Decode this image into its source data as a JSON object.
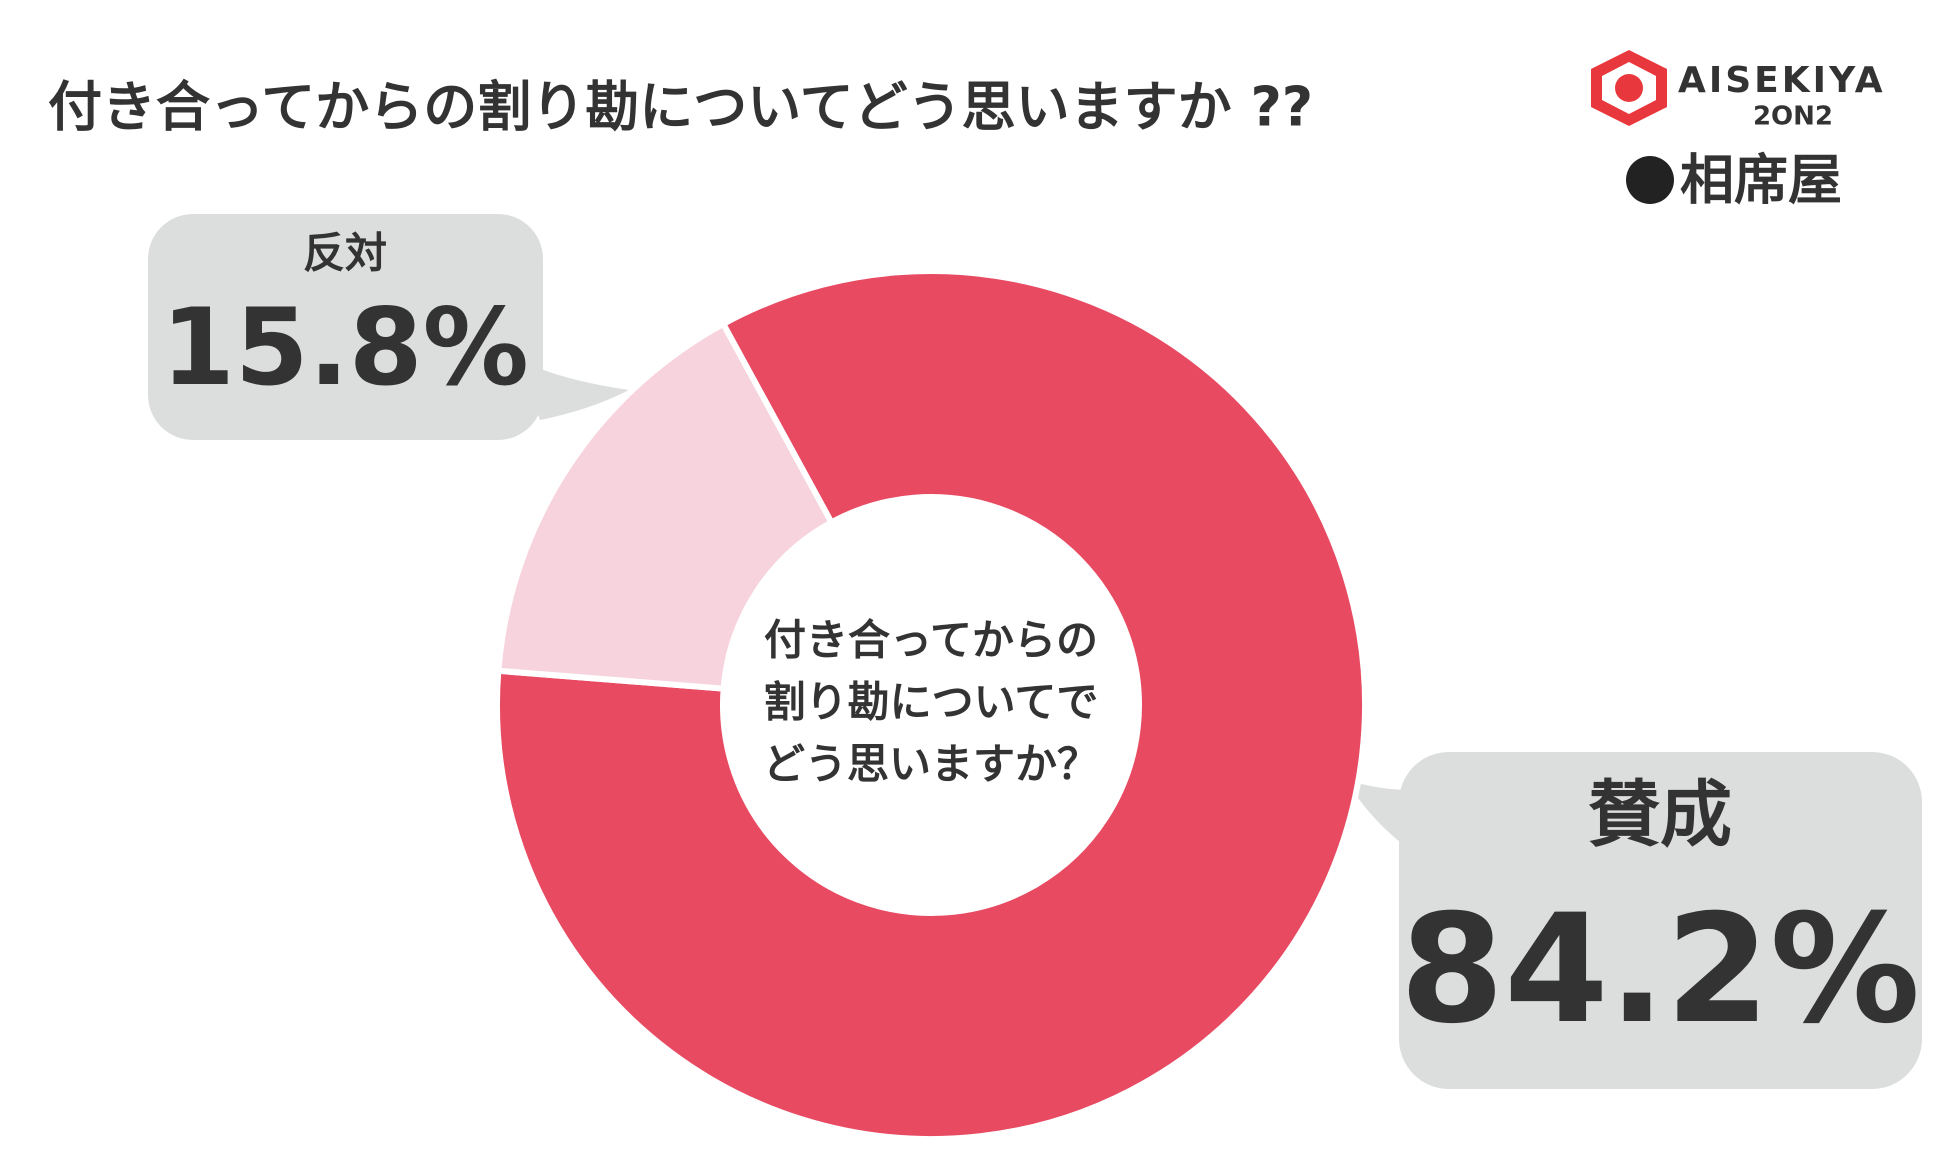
{
  "chart_data": {
    "type": "donut",
    "title": "付き合ってからの割り勘についてどう思いますか ??",
    "center_label": [
      "付き合ってからの",
      "割り勘についてで",
      "どう思いますか？"
    ],
    "categories": [
      "賛成",
      "反対"
    ],
    "values": [
      84.2,
      15.8
    ],
    "value_labels": [
      "84.2%",
      "15.8%"
    ],
    "colors": [
      "#e84a62",
      "#f7d3dd"
    ]
  },
  "logo": {
    "brand": "AISEKIYA",
    "sub": "2ON2",
    "name": "相席屋"
  }
}
